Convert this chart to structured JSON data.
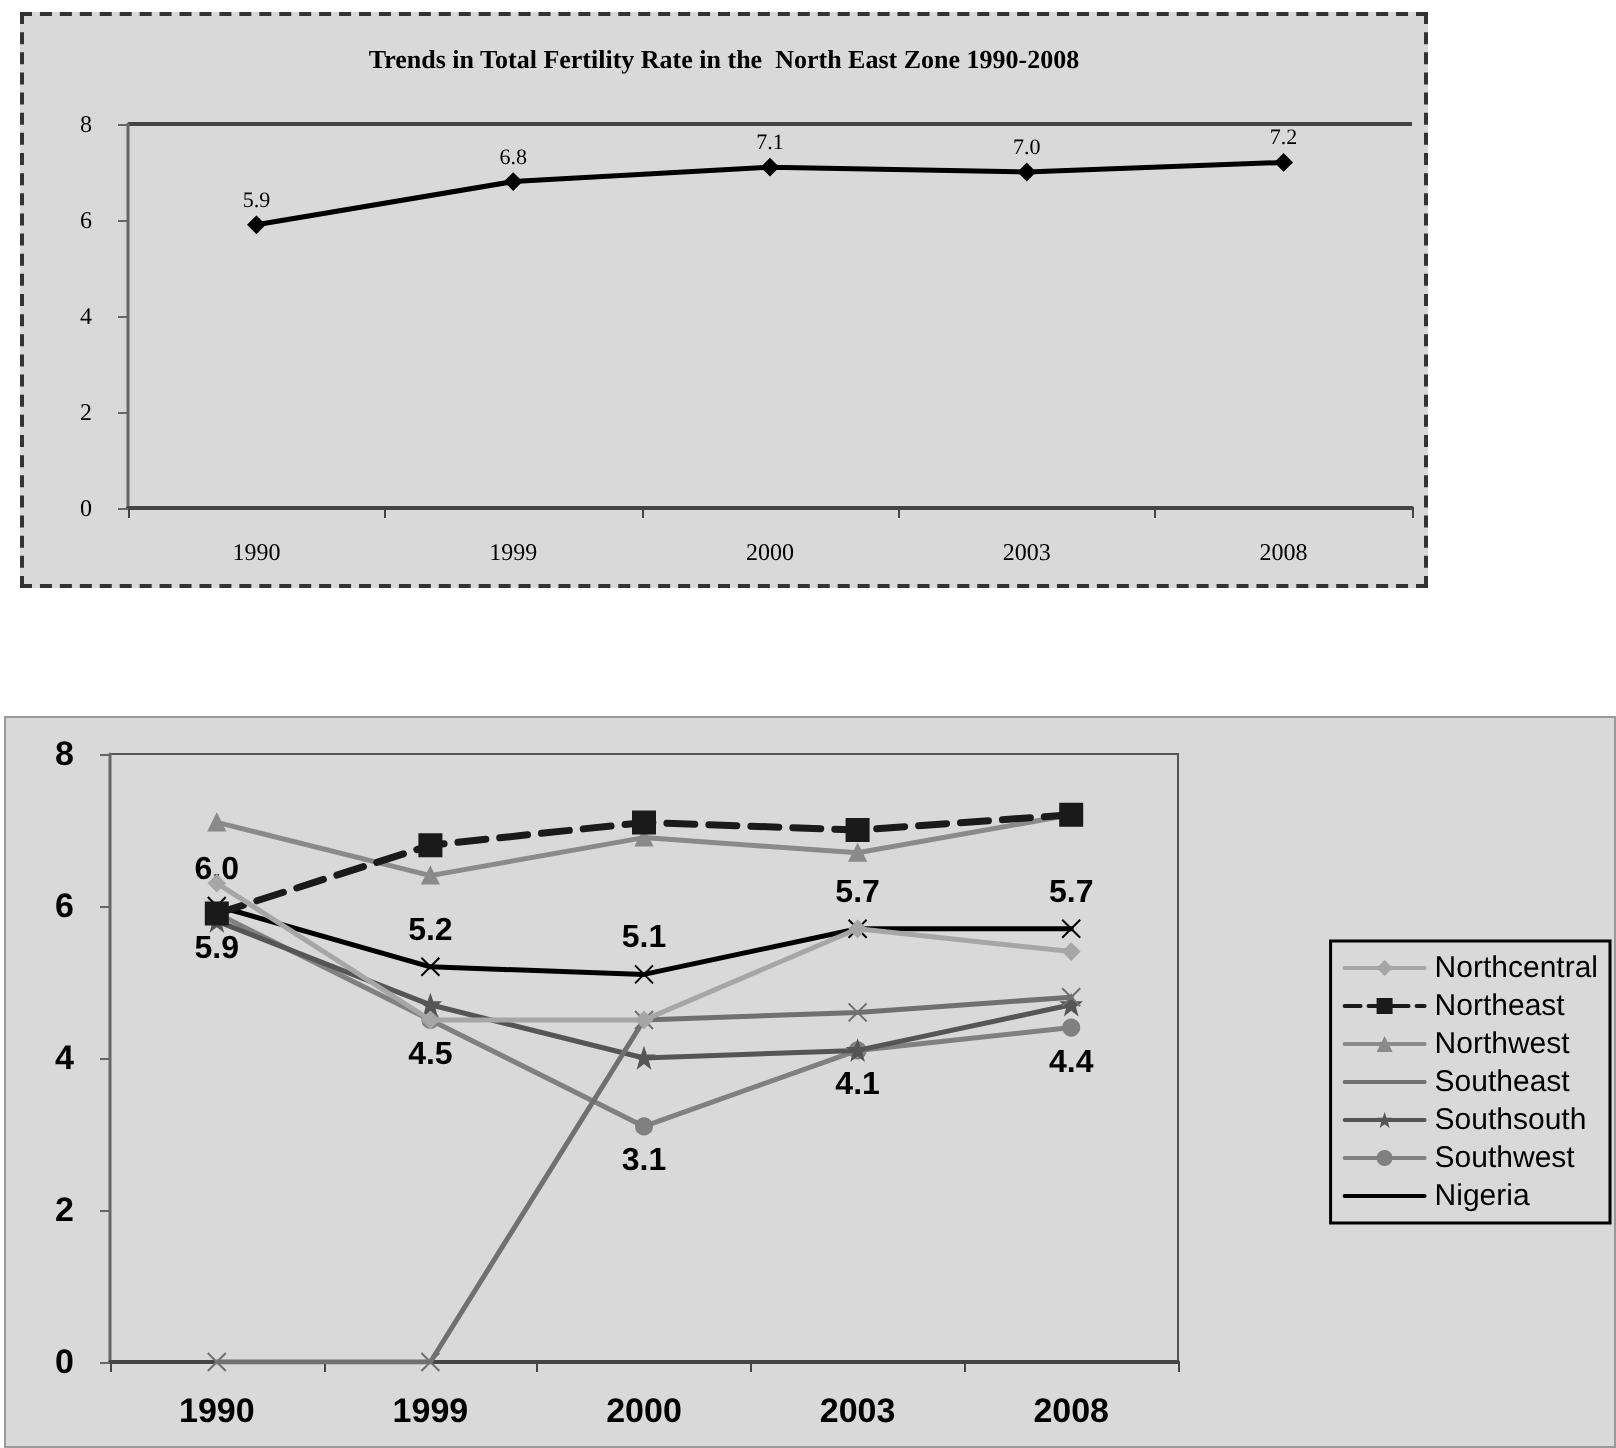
{
  "chart_data": [
    {
      "type": "line",
      "title": "Trends in Total Fertility Rate in the  North East Zone 1990-2008",
      "categories": [
        "1990",
        "1999",
        "2000",
        "2003",
        "2008"
      ],
      "values": [
        5.9,
        6.8,
        7.1,
        7.0,
        7.2
      ],
      "value_labels": [
        "5.9",
        "6.8",
        "7.1",
        "7.0",
        "7.2"
      ],
      "color": "#000000",
      "ylim": [
        0,
        8
      ],
      "yticks": [
        0,
        2,
        4,
        6,
        8
      ],
      "marker": "diamond",
      "grid": false,
      "legend": false
    },
    {
      "type": "line",
      "categories": [
        "1990",
        "1999",
        "2000",
        "2003",
        "2008"
      ],
      "ylim": [
        0,
        8
      ],
      "yticks": [
        0,
        2,
        4,
        6,
        8
      ],
      "grid": false,
      "legend": "right",
      "series": [
        {
          "name": "Northcentral",
          "color": "#a6a6a6",
          "marker": "diamond",
          "values": [
            6.3,
            4.5,
            4.5,
            5.7,
            5.4
          ]
        },
        {
          "name": "Northeast",
          "color": "#1a1a1a",
          "marker": "square",
          "line_style": "dashed",
          "values": [
            5.9,
            6.8,
            7.1,
            7.0,
            7.2
          ]
        },
        {
          "name": "Northwest",
          "color": "#8a8a8a",
          "marker": "triangle",
          "values": [
            7.1,
            6.4,
            6.9,
            6.7,
            7.2
          ]
        },
        {
          "name": "Southeast",
          "color": "#707070",
          "marker": "cross",
          "values": [
            0,
            0,
            4.5,
            4.6,
            4.8
          ]
        },
        {
          "name": "Southsouth",
          "color": "#555555",
          "marker": "star",
          "values": [
            5.8,
            4.7,
            4.0,
            4.1,
            4.7
          ]
        },
        {
          "name": "Southwest",
          "color": "#808080",
          "marker": "circle",
          "values": [
            5.9,
            4.5,
            3.1,
            4.1,
            4.4
          ],
          "value_labels": [
            "5.9",
            "4.5",
            "3.1",
            "4.1",
            "4.4"
          ]
        },
        {
          "name": "Nigeria",
          "color": "#000000",
          "marker": "cross",
          "values": [
            6.0,
            5.2,
            5.1,
            5.7,
            5.7
          ],
          "value_labels": [
            "6.0",
            "5.2",
            "5.1",
            "5.7",
            "5.7"
          ]
        }
      ]
    }
  ]
}
